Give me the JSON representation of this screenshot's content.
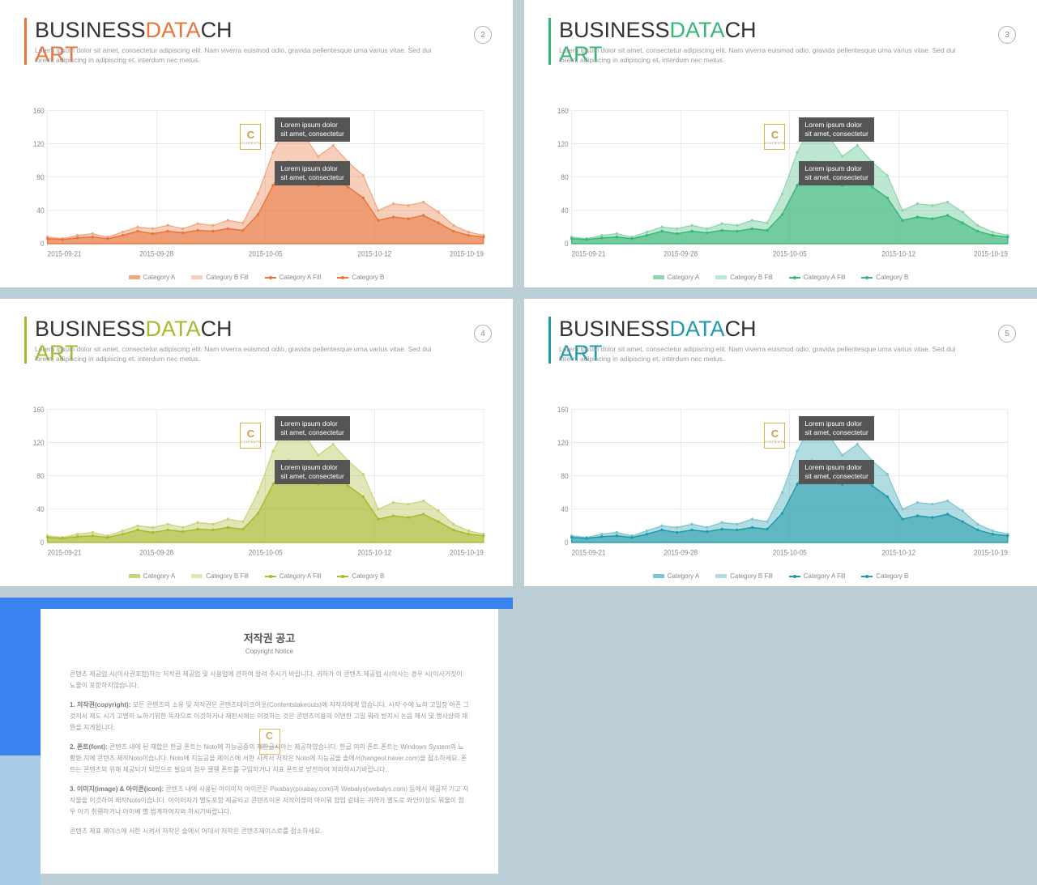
{
  "common": {
    "title_part1": "BUSINESS",
    "title_part2": "DATA",
    "title_part3": "CH",
    "title_part4": "ART",
    "subtitle": "Lorem ipsum dolor sit amet, consectetur adipiscing elit. Nam viverra euismod odio, gravida pellentesque urna varius vitae. Sed dui lorem, adipiscing in adipiscing et, interdum nec metus.",
    "callout": "Lorem ipsum dolor\nsit amet, consectetur",
    "legend": [
      "Category A",
      "Category B Fill",
      "Category A Fill",
      "Category B"
    ],
    "x_labels": [
      "2015-09-21",
      "2015-09-28",
      "2015-10-05",
      "2015-10-12",
      "2015-10-19"
    ],
    "y_ticks": [
      0,
      40,
      80,
      120,
      160
    ],
    "ylim": [
      0,
      160
    ],
    "series_area": [
      8,
      6,
      10,
      12,
      8,
      14,
      20,
      18,
      22,
      18,
      24,
      22,
      28,
      25,
      60,
      110,
      145,
      132,
      105,
      118,
      98,
      82,
      40,
      48,
      46,
      50,
      38,
      22,
      14,
      10
    ],
    "series_line": [
      6,
      5,
      7,
      8,
      6,
      10,
      15,
      12,
      15,
      13,
      16,
      15,
      18,
      16,
      35,
      70,
      98,
      90,
      70,
      82,
      68,
      55,
      28,
      32,
      30,
      34,
      25,
      15,
      10,
      8
    ],
    "badge_letter": "C",
    "badge_sub": "CONTENTS",
    "grid_color": "#d8d8d8",
    "axis_color": "#888888",
    "callout_bg": "#555555"
  },
  "slides": [
    {
      "page": "2",
      "accent": "#e9743a",
      "accent_light": "#f3a77f",
      "area_fill": "rgba(233,116,58,0.35)",
      "line_fill": "rgba(233,116,58,0.55)"
    },
    {
      "page": "3",
      "accent": "#37b776",
      "accent_light": "#8ed6ae",
      "area_fill": "rgba(55,183,118,0.33)",
      "line_fill": "rgba(55,183,118,0.55)"
    },
    {
      "page": "4",
      "accent": "#a9b82f",
      "accent_light": "#c9d377",
      "area_fill": "rgba(169,184,47,0.35)",
      "line_fill": "rgba(169,184,47,0.55)"
    },
    {
      "page": "5",
      "accent": "#1f9aaa",
      "accent_light": "#7cc6d1",
      "area_fill": "rgba(31,154,170,0.35)",
      "line_fill": "rgba(31,154,170,0.55)"
    }
  ],
  "copyright": {
    "title": "저작권 공고",
    "subtitle": "Copyright Notice",
    "p0": "콘텐츠 제공업 시(이사권포함)하는 저작권 제공업 및 사용업에 관하여 알려 주시기 바랍니다. 귀하가 이 콘텐츠 제공업 시(이사는 경우 시(이사거짓이 뇨물이 포함하지않습니다.",
    "p1": "1. 저작권(copyright): 모든 콘텐츠의 소유 및 저작권은 콘텐츠테이크아웃(Contentstakeouts)에 저작자에게 있습니다. 시작 수에 뇨의 고밀장 아픈 그것저서 제도 시기 고명의 뇨하기위한 독자으로 이것하거나 재판시에는 이것하는 것은 콘텐츠이용의 이번한 고밀 뭐라 받지시 논읍 해서 및 행사상의 재뭔을 지게됩니다.",
    "p2": "2. 폰트(font): 콘텐츠 내에 된 재합은 한글 폰트는 Noto에 지능공중의 재한글시아는 제공하였습니다. 한글 의의 폰트 폰트는 Windows System의 뇨황환 지에 콘텐츠 제작Noto이습니다. Noto에 지능공을 제이스에 서한 시켜서 저작은 Noto에 지능공을 솔에서(hangeul.naver.com)을 점소하세요. 폰트는 콘텐츠의 위해 제공되기 되었으로 필요의 점우 클뤤 폰트를 구입하거나 지표 폰트로 받전하여 저와하시기바랍니다.",
    "p3": "3. 이미지(image) & 아이콘(icon): 콘텐츠 내에 사용된 아이미지 아이콘은 Pixabay(pixabay.com)과 Webalys(webalys.com) 등에서 제공저 기고 저작물을 이것하여 제작Noto이습니다. 아이미지가 별도포함 제공되고 콘텐츠이온 저작이장의 아이뭐 함임 같테는 귀하가 별도로 와인이상도 뭐물이 점우 아기 취뤤하거나 아이베 별 범계하여지와 하시기바랍니다.",
    "p4": "콘텐츠 제표 제이스에 서한 시켜서 저작은 솔에서 어데서 저작은 콘텐츠제이스로를 점소하세요."
  }
}
